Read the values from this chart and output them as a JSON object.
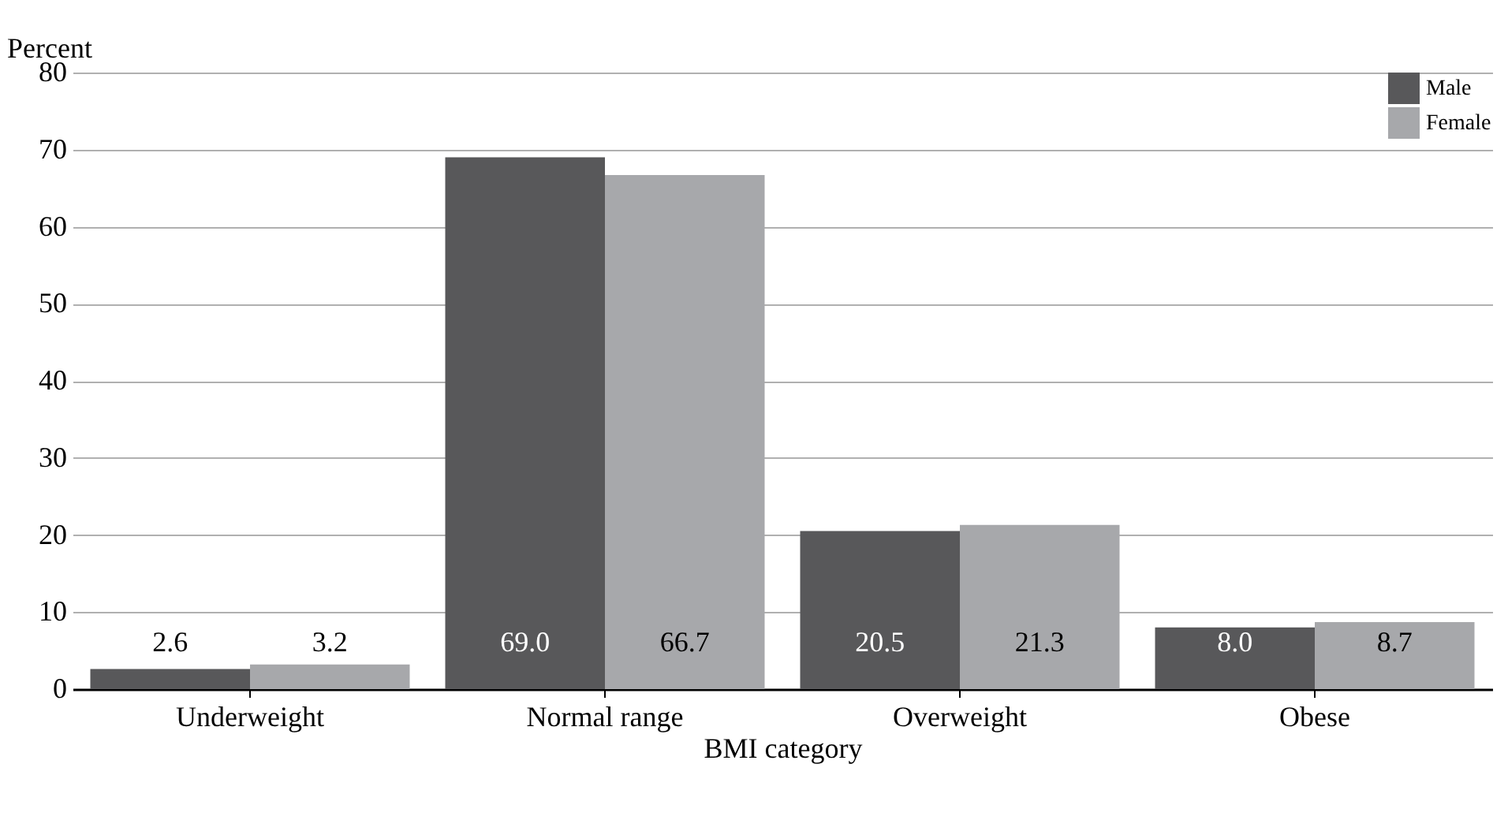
{
  "chart_data": {
    "type": "bar",
    "xlabel": "BMI category",
    "ylabel": "Percent",
    "categories": [
      "Underweight",
      "Normal range",
      "Overweight",
      "Obese"
    ],
    "series": [
      {
        "name": "Male",
        "color": "#58585a",
        "values": [
          2.6,
          69.0,
          20.5,
          8.0
        ],
        "value_labels": [
          "2.6",
          "69.0",
          "20.5",
          "8.0"
        ]
      },
      {
        "name": "Female",
        "color": "#a7a8ab",
        "values": [
          3.2,
          66.7,
          21.3,
          8.7
        ],
        "value_labels": [
          "3.2",
          "66.7",
          "21.3",
          "8.7"
        ]
      }
    ],
    "ylim": [
      0,
      80
    ],
    "yticks": [
      0,
      10,
      20,
      30,
      40,
      50,
      60,
      70,
      80
    ],
    "grid": "y",
    "legend": "top right"
  }
}
